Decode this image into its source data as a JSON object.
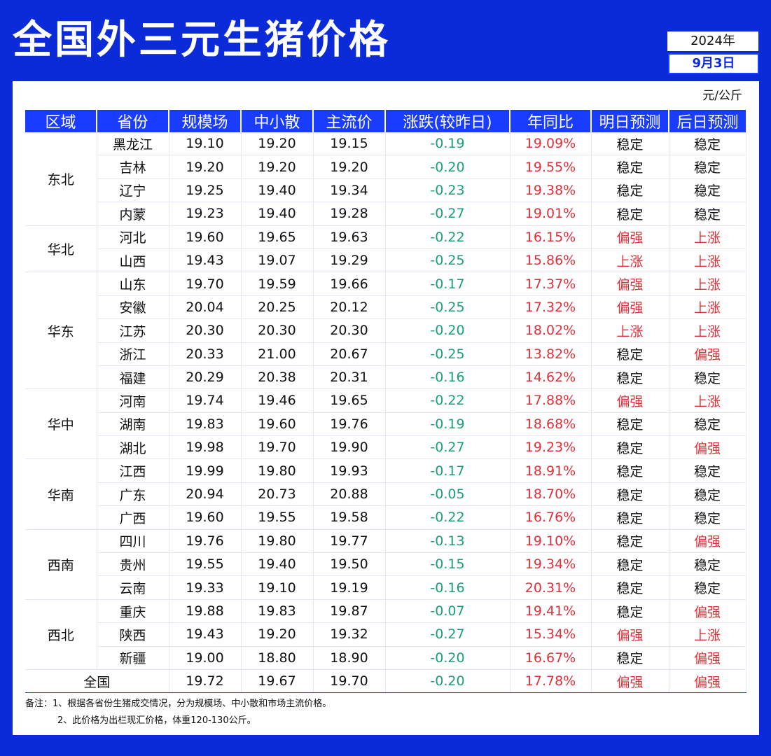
{
  "title": "全国外三元生猪价格",
  "date": {
    "year": "2024年",
    "day": "9月3日"
  },
  "unit": "元/公斤",
  "columns": [
    "区域",
    "省份",
    "规模场",
    "中小散",
    "主流价",
    "涨跌(较昨日)",
    "年同比",
    "明日预测",
    "后日预测"
  ],
  "regions": [
    {
      "name": "东北",
      "provinces": [
        {
          "province": "黑龙江",
          "large": "19.10",
          "small": "19.20",
          "main": "19.15",
          "change": "-0.19",
          "yoy": "19.09%",
          "tomorrow": "稳定",
          "after": "稳定"
        },
        {
          "province": "吉林",
          "large": "19.20",
          "small": "19.20",
          "main": "19.20",
          "change": "-0.20",
          "yoy": "19.55%",
          "tomorrow": "稳定",
          "after": "稳定"
        },
        {
          "province": "辽宁",
          "large": "19.25",
          "small": "19.40",
          "main": "19.34",
          "change": "-0.23",
          "yoy": "19.38%",
          "tomorrow": "稳定",
          "after": "稳定"
        },
        {
          "province": "内蒙",
          "large": "19.23",
          "small": "19.40",
          "main": "19.28",
          "change": "-0.27",
          "yoy": "19.01%",
          "tomorrow": "稳定",
          "after": "稳定"
        }
      ]
    },
    {
      "name": "华北",
      "provinces": [
        {
          "province": "河北",
          "large": "19.60",
          "small": "19.65",
          "main": "19.63",
          "change": "-0.22",
          "yoy": "16.15%",
          "tomorrow": "偏强",
          "after": "上涨"
        },
        {
          "province": "山西",
          "large": "19.43",
          "small": "19.07",
          "main": "19.29",
          "change": "-0.25",
          "yoy": "15.86%",
          "tomorrow": "上涨",
          "after": "上涨"
        }
      ]
    },
    {
      "name": "华东",
      "provinces": [
        {
          "province": "山东",
          "large": "19.70",
          "small": "19.59",
          "main": "19.66",
          "change": "-0.17",
          "yoy": "17.37%",
          "tomorrow": "偏强",
          "after": "上涨"
        },
        {
          "province": "安徽",
          "large": "20.04",
          "small": "20.25",
          "main": "20.12",
          "change": "-0.25",
          "yoy": "17.32%",
          "tomorrow": "偏强",
          "after": "上涨"
        },
        {
          "province": "江苏",
          "large": "20.30",
          "small": "20.30",
          "main": "20.30",
          "change": "-0.20",
          "yoy": "18.02%",
          "tomorrow": "上涨",
          "after": "上涨"
        },
        {
          "province": "浙江",
          "large": "20.33",
          "small": "21.00",
          "main": "20.67",
          "change": "-0.25",
          "yoy": "13.82%",
          "tomorrow": "稳定",
          "after": "偏强"
        },
        {
          "province": "福建",
          "large": "20.29",
          "small": "20.38",
          "main": "20.31",
          "change": "-0.16",
          "yoy": "14.62%",
          "tomorrow": "稳定",
          "after": "稳定"
        }
      ]
    },
    {
      "name": "华中",
      "provinces": [
        {
          "province": "河南",
          "large": "19.74",
          "small": "19.46",
          "main": "19.65",
          "change": "-0.22",
          "yoy": "17.88%",
          "tomorrow": "偏强",
          "after": "上涨"
        },
        {
          "province": "湖南",
          "large": "19.83",
          "small": "19.60",
          "main": "19.76",
          "change": "-0.19",
          "yoy": "18.68%",
          "tomorrow": "稳定",
          "after": "稳定"
        },
        {
          "province": "湖北",
          "large": "19.98",
          "small": "19.70",
          "main": "19.90",
          "change": "-0.27",
          "yoy": "19.23%",
          "tomorrow": "稳定",
          "after": "偏强"
        }
      ]
    },
    {
      "name": "华南",
      "provinces": [
        {
          "province": "江西",
          "large": "19.99",
          "small": "19.80",
          "main": "19.93",
          "change": "-0.17",
          "yoy": "18.91%",
          "tomorrow": "稳定",
          "after": "稳定"
        },
        {
          "province": "广东",
          "large": "20.94",
          "small": "20.73",
          "main": "20.88",
          "change": "-0.05",
          "yoy": "18.70%",
          "tomorrow": "稳定",
          "after": "稳定"
        },
        {
          "province": "广西",
          "large": "19.60",
          "small": "19.55",
          "main": "19.58",
          "change": "-0.22",
          "yoy": "16.76%",
          "tomorrow": "稳定",
          "after": "稳定"
        }
      ]
    },
    {
      "name": "西南",
      "provinces": [
        {
          "province": "四川",
          "large": "19.76",
          "small": "19.80",
          "main": "19.77",
          "change": "-0.13",
          "yoy": "19.10%",
          "tomorrow": "稳定",
          "after": "偏强"
        },
        {
          "province": "贵州",
          "large": "19.55",
          "small": "19.40",
          "main": "19.50",
          "change": "-0.15",
          "yoy": "19.34%",
          "tomorrow": "稳定",
          "after": "稳定"
        },
        {
          "province": "云南",
          "large": "19.33",
          "small": "19.10",
          "main": "19.19",
          "change": "-0.16",
          "yoy": "20.31%",
          "tomorrow": "稳定",
          "after": "稳定"
        }
      ]
    },
    {
      "name": "西北",
      "provinces": [
        {
          "province": "重庆",
          "large": "19.88",
          "small": "19.83",
          "main": "19.87",
          "change": "-0.07",
          "yoy": "19.41%",
          "tomorrow": "稳定",
          "after": "偏强"
        },
        {
          "province": "陕西",
          "large": "19.43",
          "small": "19.20",
          "main": "19.32",
          "change": "-0.27",
          "yoy": "15.34%",
          "tomorrow": "偏强",
          "after": "上涨"
        },
        {
          "province": "新疆",
          "large": "19.00",
          "small": "18.80",
          "main": "18.90",
          "change": "-0.20",
          "yoy": "16.67%",
          "tomorrow": "稳定",
          "after": "偏强"
        }
      ]
    }
  ],
  "national": {
    "label": "全国",
    "large": "19.72",
    "small": "19.67",
    "main": "19.70",
    "change": "-0.20",
    "yoy": "17.78%",
    "tomorrow": "偏强",
    "after": "偏强"
  },
  "notes": [
    "备注：1、根据各省份生猪成交情况，分为规模场、中小散和市场主流价格。",
    "2、此价格为出栏现汇价格，体重120-130公斤。"
  ],
  "colors": {
    "background": "#0b2bd9",
    "header": "#1a3cff",
    "down": "#1a9e7c",
    "up": "#e0303a"
  }
}
